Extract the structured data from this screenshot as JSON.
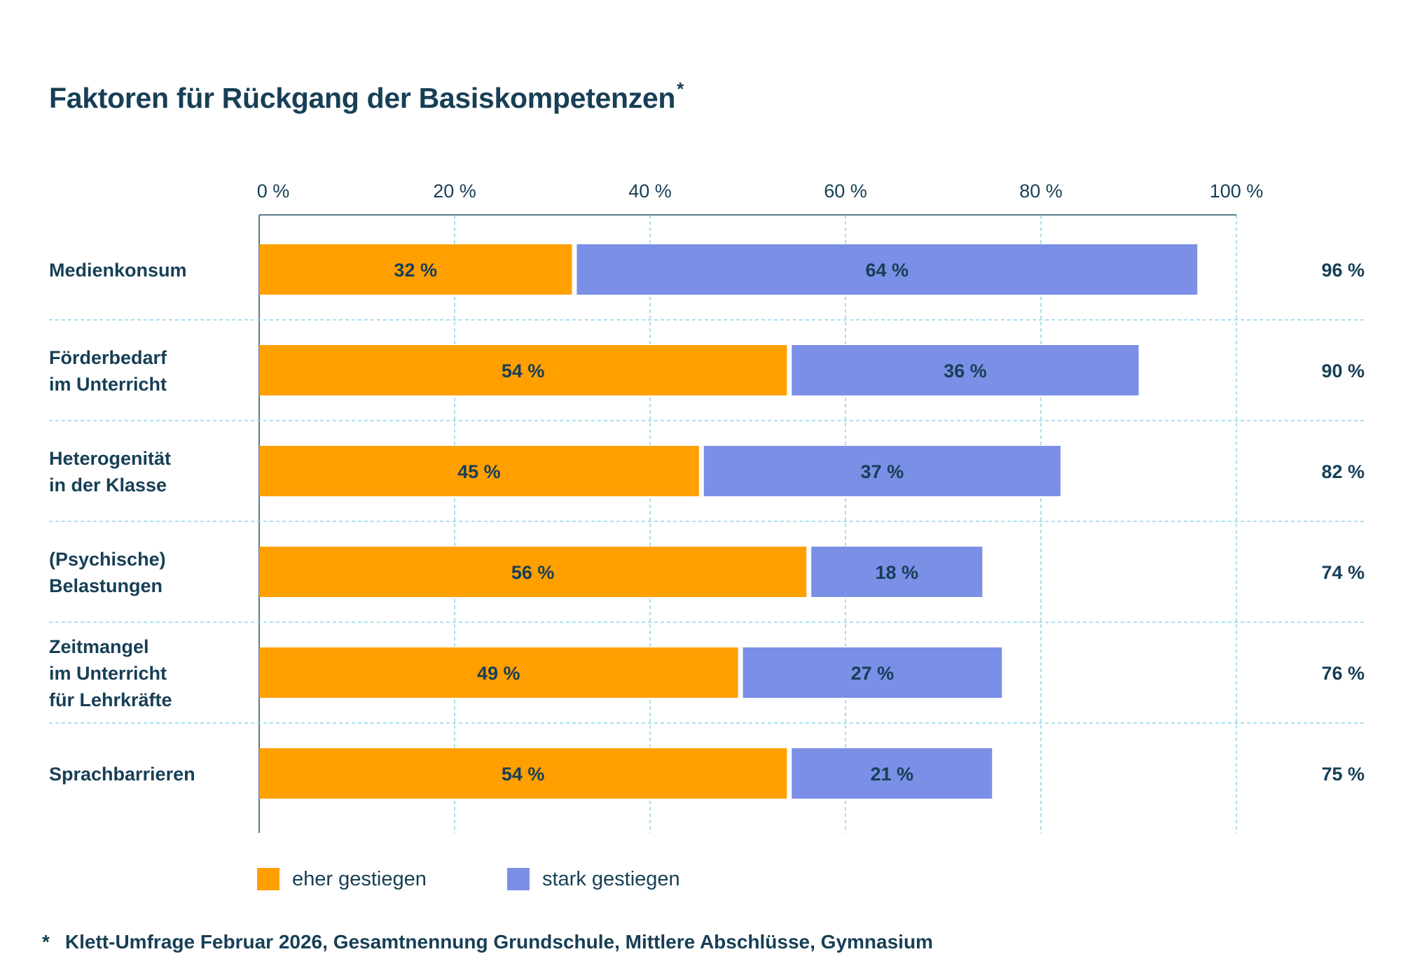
{
  "title": "Faktoren für Rückgang der Basiskompetenzen",
  "title_note": "*",
  "footnote": {
    "marker": "*",
    "text": "Klett-Umfrage Februar 2026, Gesamtnennung Grundschule, Mittlere Abschlüsse, Gymnasium"
  },
  "colors": {
    "series_eher": "#ff9f00",
    "series_stark": "#7b8fe6",
    "text": "#173f56",
    "grid": "#8fd3ea",
    "axis": "#5a7a8c"
  },
  "chart_data": {
    "type": "bar",
    "orientation": "horizontal",
    "stacked": true,
    "categories": [
      [
        "Medienkonsum"
      ],
      [
        "Förderbedarf",
        "im Unterricht"
      ],
      [
        "Heterogenität",
        "in der Klasse"
      ],
      [
        "(Psychische)",
        "Belastungen"
      ],
      [
        "Zeitmangel",
        "im Unterricht",
        "für Lehrkräfte"
      ],
      [
        "Sprachbarrieren"
      ]
    ],
    "series": [
      {
        "name": "eher gestiegen",
        "values": [
          32,
          54,
          45,
          56,
          49,
          54
        ],
        "labels": [
          "32 %",
          "54 %",
          "45 %",
          "56 %",
          "49 %",
          "54 %"
        ]
      },
      {
        "name": "stark gestiegen",
        "values": [
          64,
          36,
          37,
          18,
          27,
          21
        ],
        "labels": [
          "64 %",
          "36 %",
          "37 %",
          "18 %",
          "27 %",
          "21 %"
        ]
      }
    ],
    "totals": [
      "96 %",
      "90 %",
      "82 %",
      "74 %",
      "76 %",
      "75 %"
    ],
    "x_ticks": [
      "0 %",
      "20 %",
      "40 %",
      "60 %",
      "80 %",
      "100 %"
    ],
    "xlim": [
      0,
      100
    ],
    "grid": true,
    "legend_position": "bottom-left"
  }
}
